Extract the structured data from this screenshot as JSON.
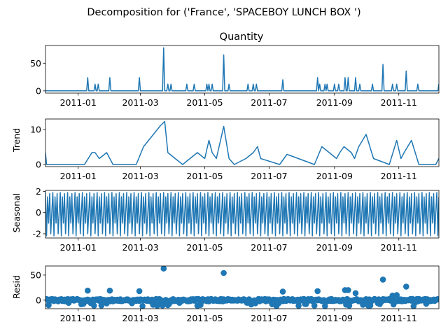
{
  "figure": {
    "suptitle": "Decomposition for ('France', 'SPACEBOY LUNCH BOX ')",
    "line_color": "#1f77b4"
  },
  "chart_data": [
    {
      "panel": "observed",
      "type": "line",
      "title": "Quantity",
      "ylabel": "",
      "x_range": [
        "2010-12-01",
        "2011-12-09"
      ],
      "ylim": [
        -4,
        82
      ],
      "yticks": [
        0,
        50
      ],
      "xticks": [
        "2011-01",
        "2011-03",
        "2011-05",
        "2011-07",
        "2011-09",
        "2011-11"
      ],
      "x": [
        "2010-12-01",
        "2011-01-10",
        "2011-01-17",
        "2011-01-20",
        "2011-01-31",
        "2011-02-28",
        "2011-03-23",
        "2011-03-27",
        "2011-03-30",
        "2011-04-14",
        "2011-04-21",
        "2011-05-03",
        "2011-05-05",
        "2011-05-08",
        "2011-05-19",
        "2011-05-24",
        "2011-06-11",
        "2011-06-16",
        "2011-06-19",
        "2011-07-14",
        "2011-08-16",
        "2011-08-18",
        "2011-08-23",
        "2011-08-25",
        "2011-09-01",
        "2011-09-05",
        "2011-09-11",
        "2011-09-14",
        "2011-09-21",
        "2011-09-25",
        "2011-10-07",
        "2011-10-17",
        "2011-10-26",
        "2011-10-30",
        "2011-11-08",
        "2011-11-19",
        "2011-12-09"
      ],
      "y": [
        0,
        24,
        12,
        12,
        24,
        24,
        78,
        12,
        12,
        12,
        12,
        12,
        12,
        12,
        65,
        12,
        12,
        12,
        12,
        20,
        24,
        12,
        12,
        12,
        12,
        12,
        24,
        24,
        24,
        12,
        12,
        48,
        12,
        12,
        36,
        12,
        12
      ]
    },
    {
      "panel": "trend",
      "type": "line",
      "ylabel": "Trend",
      "x_range": [
        "2010-12-01",
        "2011-12-09"
      ],
      "ylim": [
        -0.6,
        13
      ],
      "yticks": [
        0,
        10
      ],
      "xticks": [
        "2011-01",
        "2011-03",
        "2011-05",
        "2011-07",
        "2011-09",
        "2011-11"
      ],
      "x": [
        "2010-12-01",
        "2010-12-02",
        "2011-01-07",
        "2011-01-14",
        "2011-01-17",
        "2011-01-21",
        "2011-01-28",
        "2011-02-03",
        "2011-02-25",
        "2011-03-04",
        "2011-03-20",
        "2011-03-24",
        "2011-03-27",
        "2011-04-03",
        "2011-04-10",
        "2011-04-17",
        "2011-04-24",
        "2011-05-01",
        "2011-05-05",
        "2011-05-08",
        "2011-05-12",
        "2011-05-19",
        "2011-05-24",
        "2011-05-29",
        "2011-06-09",
        "2011-06-16",
        "2011-06-20",
        "2011-06-23",
        "2011-07-11",
        "2011-07-18",
        "2011-08-13",
        "2011-08-20",
        "2011-08-27",
        "2011-09-03",
        "2011-09-06",
        "2011-09-10",
        "2011-09-17",
        "2011-09-20",
        "2011-09-24",
        "2011-10-01",
        "2011-10-08",
        "2011-10-23",
        "2011-10-30",
        "2011-11-03",
        "2011-11-06",
        "2011-11-13",
        "2011-11-20",
        "2011-12-06",
        "2011-12-09"
      ],
      "y": [
        3.4,
        0,
        0,
        3.4,
        3.4,
        1.7,
        3.4,
        0,
        0,
        5.1,
        11.1,
        12.3,
        3.4,
        1.7,
        0,
        1.7,
        3.4,
        1.7,
        6.9,
        3.4,
        1.7,
        10.9,
        1.7,
        0,
        1.7,
        3.4,
        5.1,
        1.7,
        0,
        2.9,
        0,
        5.1,
        3.4,
        1.7,
        3.4,
        5.1,
        3.4,
        1.7,
        5.1,
        8.6,
        1.7,
        0,
        6.9,
        1.7,
        3.4,
        6.9,
        0,
        0,
        1.7
      ]
    },
    {
      "panel": "seasonal",
      "type": "line",
      "ylabel": "Seasonal",
      "x_range": [
        "2010-12-01",
        "2011-12-09"
      ],
      "ylim": [
        -2.4,
        2.1
      ],
      "yticks": [
        -2,
        0,
        2
      ],
      "xticks": [
        "2011-01",
        "2011-03",
        "2011-05",
        "2011-07",
        "2011-09",
        "2011-11"
      ],
      "period_days": 7,
      "pattern": [
        1.9,
        -2.2,
        1.5,
        -1.0,
        1.8,
        -2.0,
        0.0
      ]
    },
    {
      "panel": "resid",
      "type": "scatter",
      "ylabel": "Resid",
      "x_range": [
        "2010-12-01",
        "2011-12-09"
      ],
      "ylim": [
        -17,
        68
      ],
      "yticks": [
        0,
        50
      ],
      "xticks": [
        "2011-01",
        "2011-03",
        "2011-05",
        "2011-07",
        "2011-09",
        "2011-11"
      ],
      "x": [
        "2011-01-10",
        "2011-01-31",
        "2011-02-28",
        "2011-03-23",
        "2011-05-19",
        "2011-07-14",
        "2011-08-16",
        "2011-09-11",
        "2011-09-14",
        "2011-09-21",
        "2011-10-17",
        "2011-10-26",
        "2011-10-30",
        "2011-11-08"
      ],
      "y": [
        19,
        19,
        18,
        63,
        54,
        17,
        18,
        20,
        20,
        14,
        41,
        9,
        10,
        27
      ],
      "baseline_noise": [
        [
          -3,
          3
        ]
      ]
    }
  ]
}
